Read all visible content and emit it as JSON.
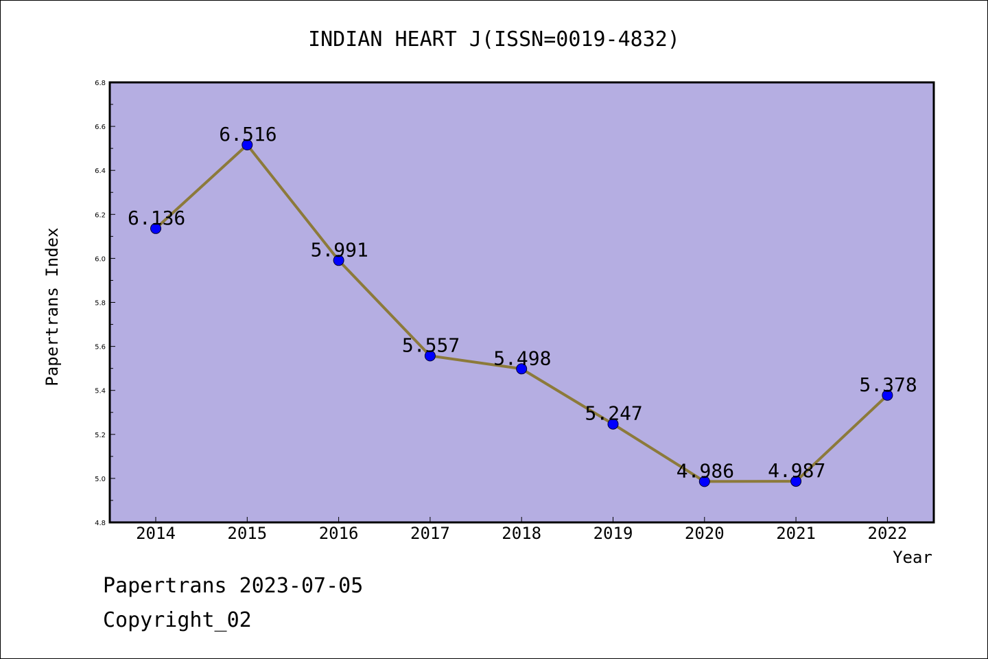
{
  "chart_data": {
    "type": "line",
    "title": "INDIAN HEART J(ISSN=0019-4832)",
    "xlabel": "Year",
    "ylabel": "Papertrans Index",
    "categories": [
      "2014",
      "2015",
      "2016",
      "2017",
      "2018",
      "2019",
      "2020",
      "2021",
      "2022"
    ],
    "values": [
      6.136,
      6.516,
      5.991,
      5.557,
      5.498,
      5.247,
      4.986,
      4.987,
      5.378
    ],
    "data_labels": [
      "6.136",
      "6.516",
      "5.991",
      "5.557",
      "5.498",
      "5.247",
      "4.986",
      "4.987",
      "5.378"
    ],
    "ylim": [
      4.8,
      6.8
    ],
    "yticks": [
      "4.8",
      "5.0",
      "5.2",
      "5.4",
      "5.6",
      "5.8",
      "6.0",
      "6.2",
      "6.4",
      "6.6",
      "6.8"
    ],
    "grid": false,
    "colors": {
      "plot_background": "#b5aee2",
      "line": "#8c7a3a",
      "marker": "#0000ff"
    }
  },
  "footer": {
    "line1": "Papertrans 2023-07-05",
    "line2": "Copyright_02"
  }
}
